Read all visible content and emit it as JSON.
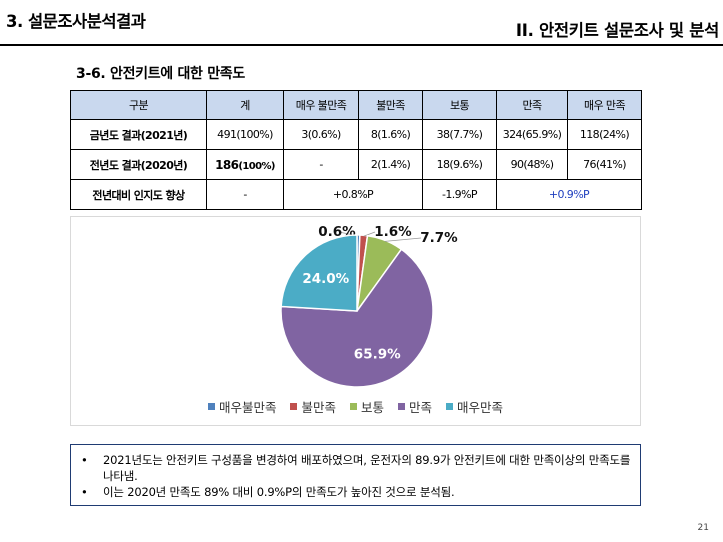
{
  "header": {
    "left_title": "3. 설문조사분석결과",
    "right_title": "II. 안전키트 설문조사 및 분석"
  },
  "section_title": "3-6. 안전키트에 대한 만족도",
  "table": {
    "headers": [
      "구분",
      "계",
      "매우 불만족",
      "불만족",
      "보통",
      "만족",
      "매우 만족"
    ],
    "row_2021": {
      "label": "금년도 결과(2021년)",
      "values": [
        "491(100%)",
        "3(0.6%)",
        "8(1.6%)",
        "38(7.7%)",
        "324(65.9%)",
        "118(24%)"
      ]
    },
    "row_2020": {
      "label": "전년도 결과(2020년)",
      "total_main": "186",
      "total_sub": "(100%)",
      "values": [
        "-",
        "2(1.4%)",
        "18(9.6%)",
        "90(48%)",
        "76(41%)"
      ]
    },
    "row_change": {
      "label": "전년대비 인지도 향상",
      "values": [
        "-",
        "+0.8%P",
        "-1.9%P",
        "+0.9%P"
      ]
    }
  },
  "chart_data": {
    "type": "pie",
    "categories": [
      "매우불만족",
      "불만족",
      "보통",
      "만족",
      "매우만족"
    ],
    "values": [
      0.6,
      1.6,
      7.7,
      65.9,
      24.0
    ],
    "labels": [
      "0.6%",
      "1.6%",
      "7.7%",
      "65.9%",
      "24.0%"
    ],
    "colors": [
      "#4f81bd",
      "#c0504d",
      "#9bbb59",
      "#8064a2",
      "#4bacc6"
    ],
    "legend": "bottom"
  },
  "notes": [
    "2021년도는 안전키트 구성품을 변경하여 배포하였으며, 운전자의 89.9가 안전키트에 대한 만족이상의 만족도를 나타냄.",
    "이는 2020년 만족도 89% 대비 0.9%P의 만족도가 높아진 것으로 분석됨."
  ],
  "bullet_char": "•",
  "page_number": "21"
}
